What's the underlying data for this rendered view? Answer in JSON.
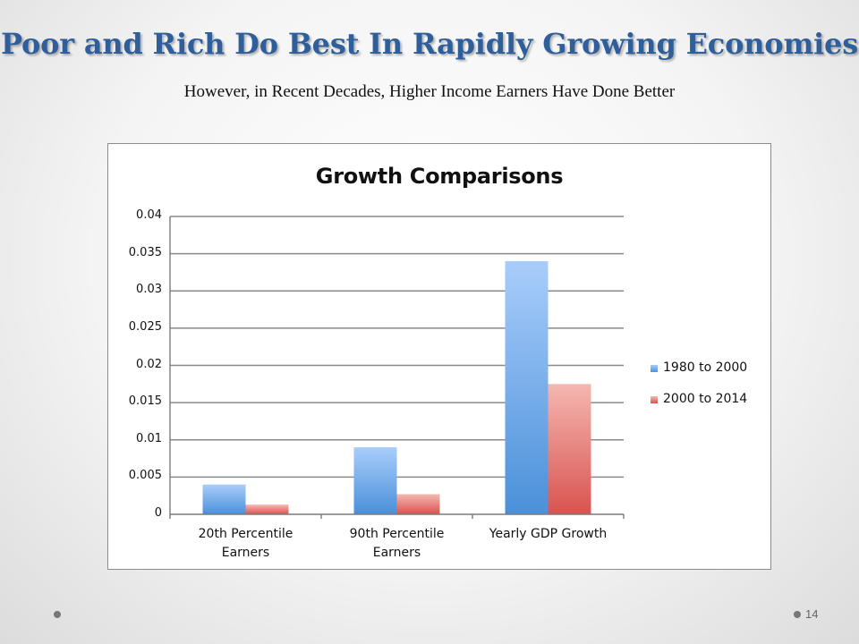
{
  "slide": {
    "title": "Poor and Rich Do Best In Rapidly Growing Economies",
    "subtitle": "However, in Recent Decades, Higher Income Earners Have Done Better",
    "page_number": "14"
  },
  "chart_data": {
    "type": "bar",
    "title": "Growth Comparisons",
    "xlabel": "",
    "ylabel": "",
    "categories": [
      "20th Percentile Earners",
      "90th Percentile Earners",
      "Yearly GDP Growth"
    ],
    "category_lines": [
      [
        "20th Percentile",
        "Earners"
      ],
      [
        "90th Percentile",
        "Earners"
      ],
      [
        "Yearly GDP Growth",
        ""
      ]
    ],
    "series": [
      {
        "name": "1980 to 2000",
        "values": [
          0.004,
          0.009,
          0.034
        ],
        "color": "#4a90d9",
        "color_light": "#a9cdfb"
      },
      {
        "name": "2000 to 2014",
        "values": [
          0.0013,
          0.0027,
          0.0175
        ],
        "color": "#d9534f",
        "color_light": "#f5b7b1"
      }
    ],
    "ylim": [
      0,
      0.04
    ],
    "yticks": [
      "0",
      "0.005",
      "0.01",
      "0.015",
      "0.02",
      "0.025",
      "0.03",
      "0.035",
      "0.04"
    ],
    "grid": true,
    "legend_position": "right"
  }
}
